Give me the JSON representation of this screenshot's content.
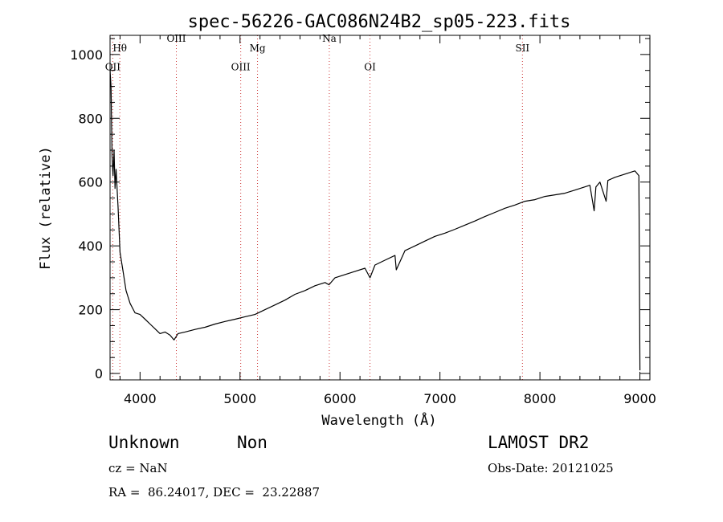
{
  "chart_data": {
    "type": "line",
    "title": "spec-56226-GAC086N24B2_sp05-223.fits",
    "xlabel": "Wavelength (Å)",
    "ylabel": "Flux (relative)",
    "xlim": [
      3700,
      9100
    ],
    "ylim": [
      -20,
      1060
    ],
    "xticks": [
      4000,
      5000,
      6000,
      7000,
      8000,
      9000
    ],
    "xtick_labels": [
      "4000",
      "5000",
      "6000",
      "7000",
      "8000",
      "9000"
    ],
    "yticks": [
      0,
      200,
      400,
      600,
      800,
      1000
    ],
    "ytick_labels": [
      "0",
      "200",
      "400",
      "600",
      "800",
      "1000"
    ],
    "series": [
      {
        "name": "flux",
        "x": [
          3700,
          3710,
          3720,
          3730,
          3740,
          3750,
          3760,
          3780,
          3800,
          3830,
          3860,
          3900,
          3950,
          4000,
          4050,
          4100,
          4150,
          4200,
          4250,
          4300,
          4340,
          4380,
          4450,
          4550,
          4650,
          4750,
          4850,
          4950,
          5050,
          5150,
          5250,
          5350,
          5450,
          5550,
          5650,
          5750,
          5850,
          5890,
          5950,
          6050,
          6150,
          6250,
          6300,
          6350,
          6450,
          6550,
          6563,
          6650,
          6750,
          6850,
          6950,
          7050,
          7150,
          7250,
          7350,
          7450,
          7550,
          7650,
          7750,
          7850,
          7950,
          8050,
          8150,
          8250,
          8350,
          8450,
          8500,
          8542,
          8560,
          8600,
          8662,
          8680,
          8750,
          8850,
          8950,
          8990,
          9000
        ],
        "y": [
          950,
          900,
          680,
          620,
          700,
          580,
          640,
          520,
          380,
          320,
          260,
          220,
          190,
          185,
          170,
          155,
          140,
          125,
          130,
          120,
          105,
          125,
          130,
          138,
          145,
          155,
          163,
          170,
          178,
          185,
          200,
          215,
          230,
          248,
          260,
          275,
          285,
          278,
          300,
          310,
          320,
          330,
          300,
          340,
          355,
          370,
          325,
          385,
          400,
          415,
          430,
          440,
          452,
          465,
          478,
          492,
          505,
          518,
          528,
          540,
          545,
          555,
          560,
          565,
          575,
          585,
          590,
          510,
          585,
          600,
          540,
          605,
          615,
          625,
          635,
          620,
          10
        ]
      }
    ],
    "line_markers": [
      {
        "label": "OII",
        "x": 3727,
        "y": 950
      },
      {
        "label": "Hθ",
        "x": 3798,
        "y": 1010
      },
      {
        "label": "OIII",
        "x": 4363,
        "y": 1040
      },
      {
        "label": "OIII",
        "x": 5007,
        "y": 950
      },
      {
        "label": "Mg",
        "x": 5175,
        "y": 1010
      },
      {
        "label": "Na",
        "x": 5893,
        "y": 1040
      },
      {
        "label": "OI",
        "x": 6300,
        "y": 950
      },
      {
        "label": "SII",
        "x": 7825,
        "y": 1010
      }
    ],
    "marker_color": "#cc3333"
  },
  "footer": {
    "class_text": "Unknown",
    "subclass_text": "Non",
    "cz_text": "cz = NaN",
    "coords_text": "RA =  86.24017, DEC =  23.22887",
    "survey_text": "LAMOST DR2",
    "obs_date_text": "Obs-Date: 20121025"
  }
}
